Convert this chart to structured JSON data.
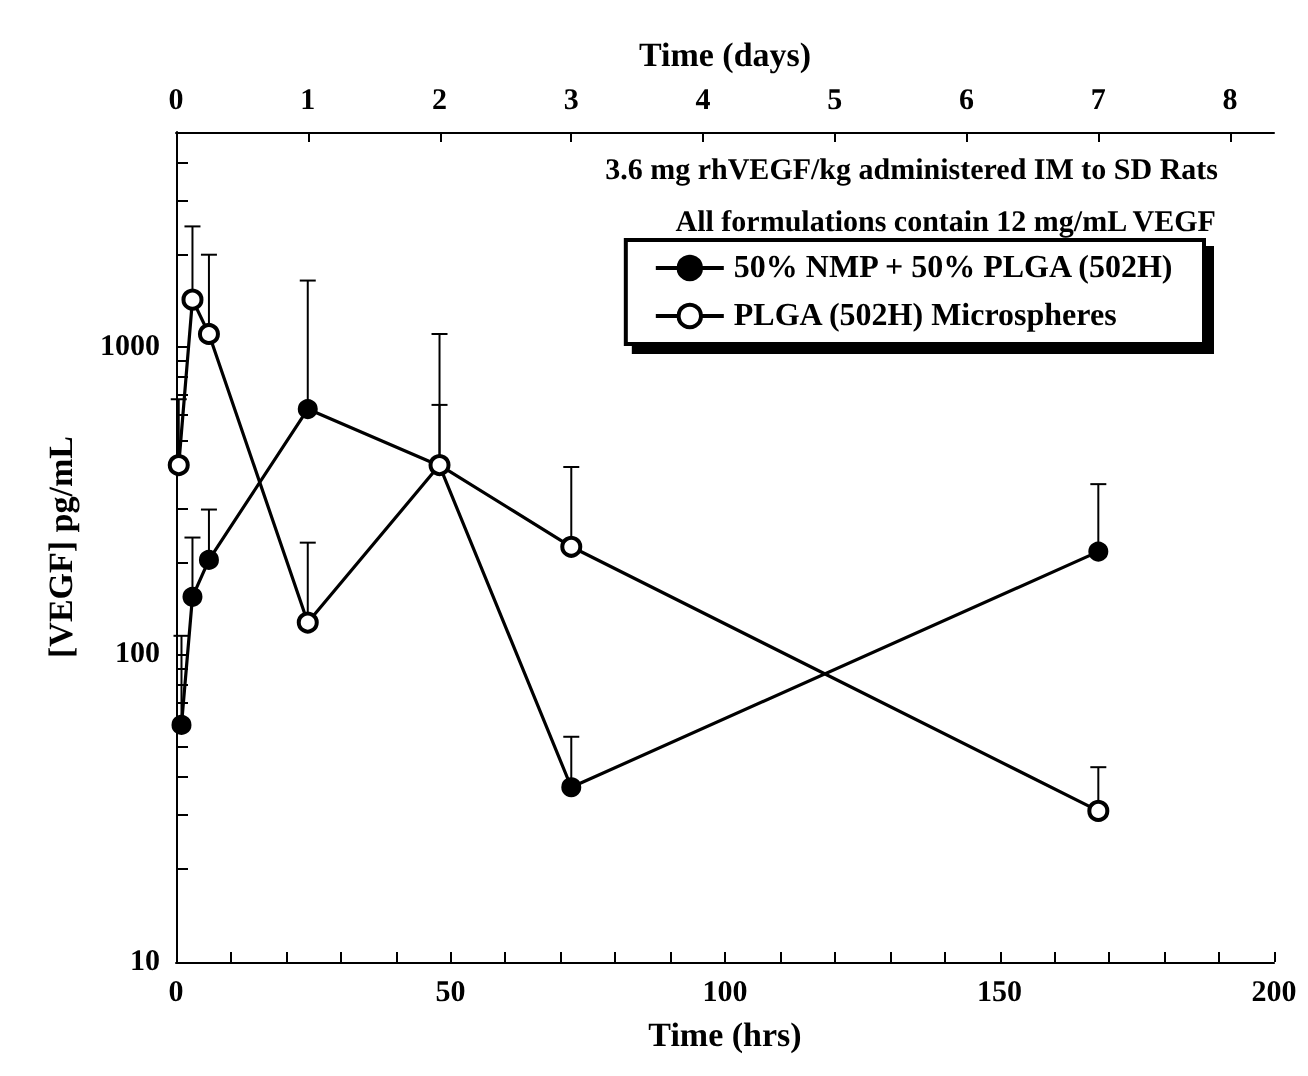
{
  "chart_data": {
    "type": "line",
    "xlabel": "Time (hrs)",
    "x2label": "Time (days)",
    "ylabel": "[VEGF] pg/mL",
    "log": "y",
    "legend": "top right",
    "marker": "circle",
    "line_style": "solid",
    "grid": false,
    "annotations": [
      "3.6 mg rhVEGF/kg administered IM to SD Rats",
      "All formulations contain 12 mg/mL VEGF"
    ],
    "xlim": [
      0,
      200
    ],
    "xticks": [
      0,
      {
        "value": 10,
        "label": null
      },
      {
        "value": 20,
        "label": null
      },
      {
        "value": 30,
        "label": null
      },
      {
        "value": 40,
        "label": null
      },
      50,
      {
        "value": 60,
        "label": null
      },
      {
        "value": 70,
        "label": null
      },
      {
        "value": 80,
        "label": null
      },
      {
        "value": 90,
        "label": null
      },
      100,
      {
        "value": 110,
        "label": null
      },
      {
        "value": 120,
        "label": null
      },
      {
        "value": 130,
        "label": null
      },
      {
        "value": 140,
        "label": null
      },
      150,
      {
        "value": 160,
        "label": null
      },
      {
        "value": 170,
        "label": null
      },
      {
        "value": 180,
        "label": null
      },
      {
        "value": 190,
        "label": null
      },
      200
    ],
    "x2lim": [
      0,
      8.333
    ],
    "x2ticks": [
      0,
      1,
      2,
      3,
      4,
      5,
      6,
      7,
      8
    ],
    "ylim": [
      10,
      5000
    ],
    "yticks": [
      10,
      {
        "value": 20,
        "label": null
      },
      {
        "value": 30,
        "label": null
      },
      {
        "value": 40,
        "label": null
      },
      {
        "value": 50,
        "label": null
      },
      {
        "value": 60,
        "label": null
      },
      {
        "value": 70,
        "label": null
      },
      {
        "value": 80,
        "label": null
      },
      {
        "value": 90,
        "label": null
      },
      100,
      {
        "value": 200,
        "label": null
      },
      {
        "value": 300,
        "label": null
      },
      {
        "value": 400,
        "label": null
      },
      {
        "value": 500,
        "label": null
      },
      {
        "value": 600,
        "label": null
      },
      {
        "value": 700,
        "label": null
      },
      {
        "value": 800,
        "label": null
      },
      {
        "value": 900,
        "label": null
      },
      1000,
      {
        "value": 2000,
        "label": null
      },
      {
        "value": 3000,
        "label": null
      },
      {
        "value": 4000,
        "label": null
      },
      {
        "value": 5000,
        "label": null
      }
    ],
    "series": [
      {
        "name": "50% NMP + 50% PLGA (502H)",
        "color": "#000000",
        "x": [
          1,
          3,
          6,
          24,
          48,
          72,
          168
        ],
        "values": [
          59,
          154,
          203,
          628,
          411,
          37,
          216
        ],
        "errors": [
          [
            59,
            115
          ],
          [
            154,
            240
          ],
          [
            203,
            296
          ],
          [
            628,
            1644
          ],
          [
            411,
            648
          ],
          [
            37,
            54
          ],
          [
            216,
            358
          ]
        ]
      },
      {
        "name": "PLGA (502H) Microspheres",
        "color": "#000000",
        "x": [
          0.5,
          3,
          6,
          24,
          48,
          72,
          168
        ],
        "values": [
          413,
          1425,
          1102,
          127,
          413,
          224,
          31
        ],
        "errors": [
          [
            413,
            676
          ],
          [
            1425,
            2466
          ],
          [
            1102,
            1995
          ],
          [
            127,
            231
          ],
          [
            413,
            1102
          ],
          [
            224,
            407
          ],
          [
            31,
            43
          ]
        ]
      }
    ]
  }
}
